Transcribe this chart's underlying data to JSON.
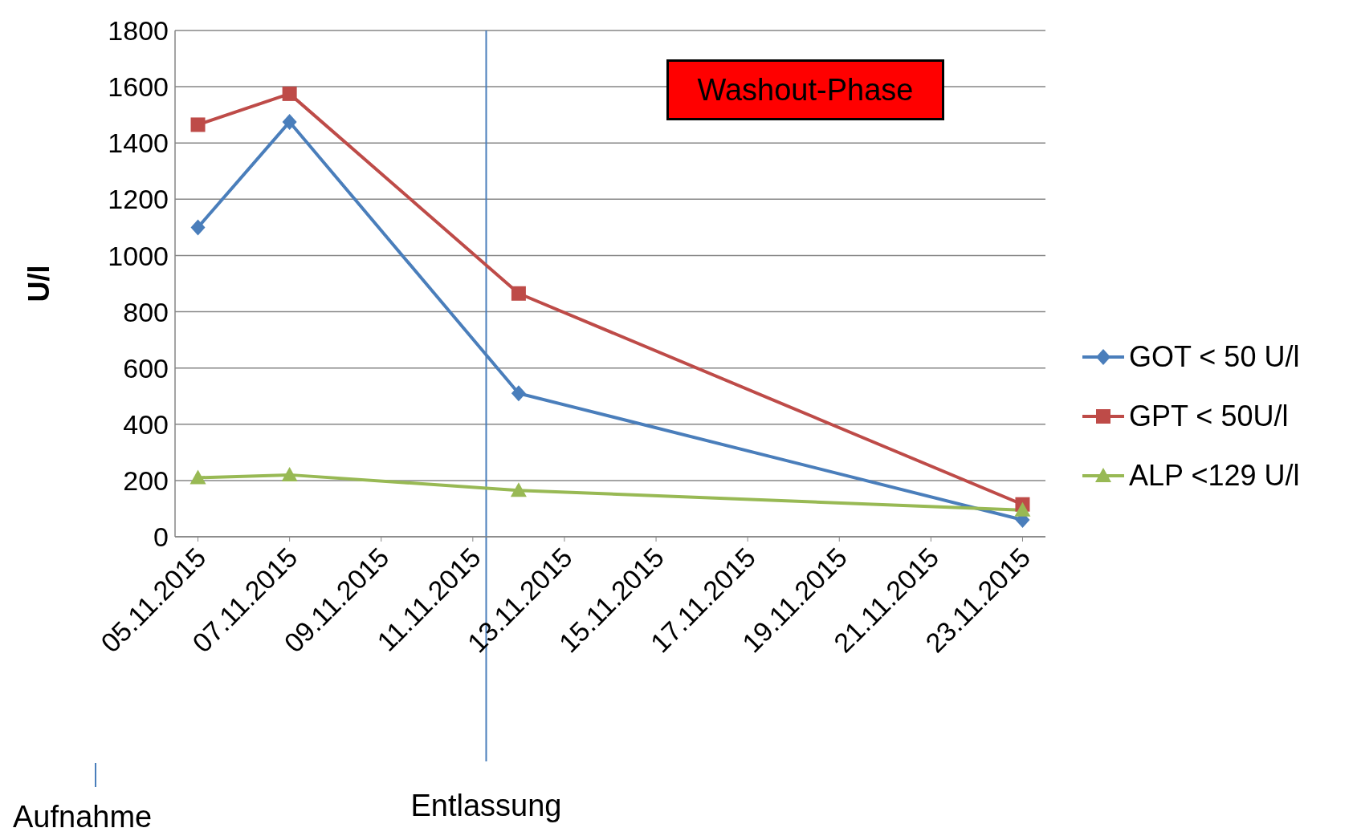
{
  "chart_data": {
    "type": "line",
    "ylabel": "U/l",
    "xlim": [
      "2015-11-04T12:00",
      "2015-11-23T12:00"
    ],
    "xticks": [
      {
        "value": "2015-11-05",
        "label": "05.11.2015"
      },
      {
        "value": "2015-11-07",
        "label": "07.11.2015"
      },
      {
        "value": "2015-11-09",
        "label": "09.11.2015"
      },
      {
        "value": "2015-11-11",
        "label": "11.11.2015"
      },
      {
        "value": "2015-11-13",
        "label": "13.11.2015"
      },
      {
        "value": "2015-11-15",
        "label": "15.11.2015"
      },
      {
        "value": "2015-11-17",
        "label": "17.11.2015"
      },
      {
        "value": "2015-11-19",
        "label": "19.11.2015"
      },
      {
        "value": "2015-11-21",
        "label": "21.11.2015"
      },
      {
        "value": "2015-11-23",
        "label": "23.11.2015"
      }
    ],
    "ylim": [
      0,
      1800
    ],
    "yticks": [
      0,
      200,
      400,
      600,
      800,
      1000,
      1200,
      1400,
      1600,
      1800
    ],
    "grid": "y",
    "legend": "right",
    "x": [
      "2015-11-05",
      "2015-11-07",
      "2015-11-12",
      "2015-11-23"
    ],
    "series": [
      {
        "name": "GOT < 50 U/l",
        "color": "#4a7ebb",
        "marker": "diamond",
        "values": [
          1100,
          1475,
          510,
          60
        ]
      },
      {
        "name": "GPT < 50U/l",
        "color": "#be4b48",
        "marker": "square",
        "values": [
          1465,
          1575,
          865,
          115
        ]
      },
      {
        "name": "ALP <129 U/l",
        "color": "#98b954",
        "marker": "triangle",
        "values": [
          210,
          220,
          165,
          95
        ]
      }
    ],
    "ref_lines": [
      {
        "axis": "x",
        "value": "2015-11-11T07:00",
        "label": "Entlassung",
        "color": "#4a7ebb"
      }
    ],
    "annotations": [
      "Washout-Phase",
      "Aufnahme"
    ]
  }
}
